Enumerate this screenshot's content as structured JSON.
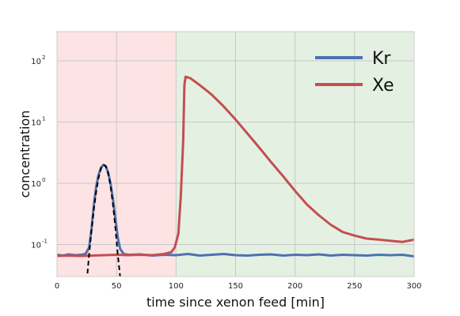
{
  "chart_data": {
    "type": "line",
    "title": "",
    "xlabel": "time since xenon feed [min]",
    "ylabel": "concentration",
    "xlim": [
      0,
      300
    ],
    "ylim": [
      0.03,
      300
    ],
    "yscale": "log",
    "grid": true,
    "legend_position": "top-right",
    "x_ticks": [
      0,
      50,
      100,
      150,
      200,
      250,
      300
    ],
    "x_tick_labels": [
      "0",
      "50",
      "100",
      "150",
      "200",
      "250",
      "300"
    ],
    "y_ticks": [
      0.1,
      1,
      10,
      100
    ],
    "y_tick_labels": [
      {
        "base": "10",
        "exp": "-1"
      },
      {
        "base": "10",
        "exp": "0"
      },
      {
        "base": "10",
        "exp": "1"
      },
      {
        "base": "10",
        "exp": "2"
      }
    ],
    "regions": [
      {
        "x0": 0,
        "x1": 100,
        "color": "#fde3e3"
      },
      {
        "x0": 100,
        "x1": 300,
        "color": "#e4f1e2"
      }
    ],
    "series": [
      {
        "name": "Kr",
        "color": "#4c72b0",
        "points": [
          [
            0,
            0.068
          ],
          [
            5,
            0.066
          ],
          [
            10,
            0.069
          ],
          [
            15,
            0.067
          ],
          [
            20,
            0.068
          ],
          [
            24,
            0.07
          ],
          [
            27,
            0.09
          ],
          [
            29,
            0.18
          ],
          [
            31,
            0.45
          ],
          [
            33,
            0.9
          ],
          [
            35,
            1.4
          ],
          [
            37,
            1.8
          ],
          [
            39,
            2.0
          ],
          [
            41,
            1.9
          ],
          [
            43,
            1.5
          ],
          [
            45,
            1.0
          ],
          [
            47,
            0.55
          ],
          [
            49,
            0.27
          ],
          [
            51,
            0.13
          ],
          [
            53,
            0.085
          ],
          [
            56,
            0.07
          ],
          [
            60,
            0.068
          ],
          [
            70,
            0.069
          ],
          [
            80,
            0.066
          ],
          [
            90,
            0.068
          ],
          [
            100,
            0.067
          ],
          [
            110,
            0.07
          ],
          [
            120,
            0.066
          ],
          [
            130,
            0.068
          ],
          [
            140,
            0.07
          ],
          [
            150,
            0.067
          ],
          [
            160,
            0.066
          ],
          [
            170,
            0.068
          ],
          [
            180,
            0.069
          ],
          [
            190,
            0.066
          ],
          [
            200,
            0.068
          ],
          [
            210,
            0.067
          ],
          [
            220,
            0.069
          ],
          [
            230,
            0.066
          ],
          [
            240,
            0.068
          ],
          [
            250,
            0.067
          ],
          [
            260,
            0.066
          ],
          [
            270,
            0.068
          ],
          [
            280,
            0.067
          ],
          [
            290,
            0.068
          ],
          [
            300,
            0.064
          ]
        ]
      },
      {
        "name": "Xe",
        "color": "#c44e52",
        "points": [
          [
            0,
            0.065
          ],
          [
            10,
            0.066
          ],
          [
            20,
            0.065
          ],
          [
            30,
            0.066
          ],
          [
            40,
            0.067
          ],
          [
            50,
            0.068
          ],
          [
            60,
            0.067
          ],
          [
            70,
            0.068
          ],
          [
            80,
            0.067
          ],
          [
            90,
            0.07
          ],
          [
            96,
            0.075
          ],
          [
            99,
            0.09
          ],
          [
            102,
            0.15
          ],
          [
            104,
            0.6
          ],
          [
            106,
            5
          ],
          [
            107,
            40
          ],
          [
            108,
            55
          ],
          [
            112,
            52
          ],
          [
            120,
            40
          ],
          [
            130,
            28
          ],
          [
            140,
            18
          ],
          [
            150,
            11
          ],
          [
            160,
            6.5
          ],
          [
            170,
            3.8
          ],
          [
            180,
            2.2
          ],
          [
            190,
            1.3
          ],
          [
            200,
            0.75
          ],
          [
            210,
            0.45
          ],
          [
            220,
            0.3
          ],
          [
            230,
            0.21
          ],
          [
            240,
            0.16
          ],
          [
            250,
            0.14
          ],
          [
            260,
            0.125
          ],
          [
            270,
            0.12
          ],
          [
            280,
            0.115
          ],
          [
            290,
            0.11
          ],
          [
            300,
            0.12
          ]
        ]
      },
      {
        "name": "",
        "color": "#000000",
        "dashed": true,
        "points": [
          [
            25,
            0.025
          ],
          [
            27,
            0.07
          ],
          [
            29,
            0.17
          ],
          [
            31,
            0.38
          ],
          [
            33,
            0.75
          ],
          [
            35,
            1.25
          ],
          [
            37,
            1.75
          ],
          [
            39,
            2.0
          ],
          [
            41,
            1.9
          ],
          [
            43,
            1.45
          ],
          [
            45,
            0.9
          ],
          [
            47,
            0.45
          ],
          [
            49,
            0.19
          ],
          [
            51,
            0.07
          ],
          [
            53,
            0.03
          ],
          [
            55,
            0.025
          ]
        ]
      }
    ]
  }
}
